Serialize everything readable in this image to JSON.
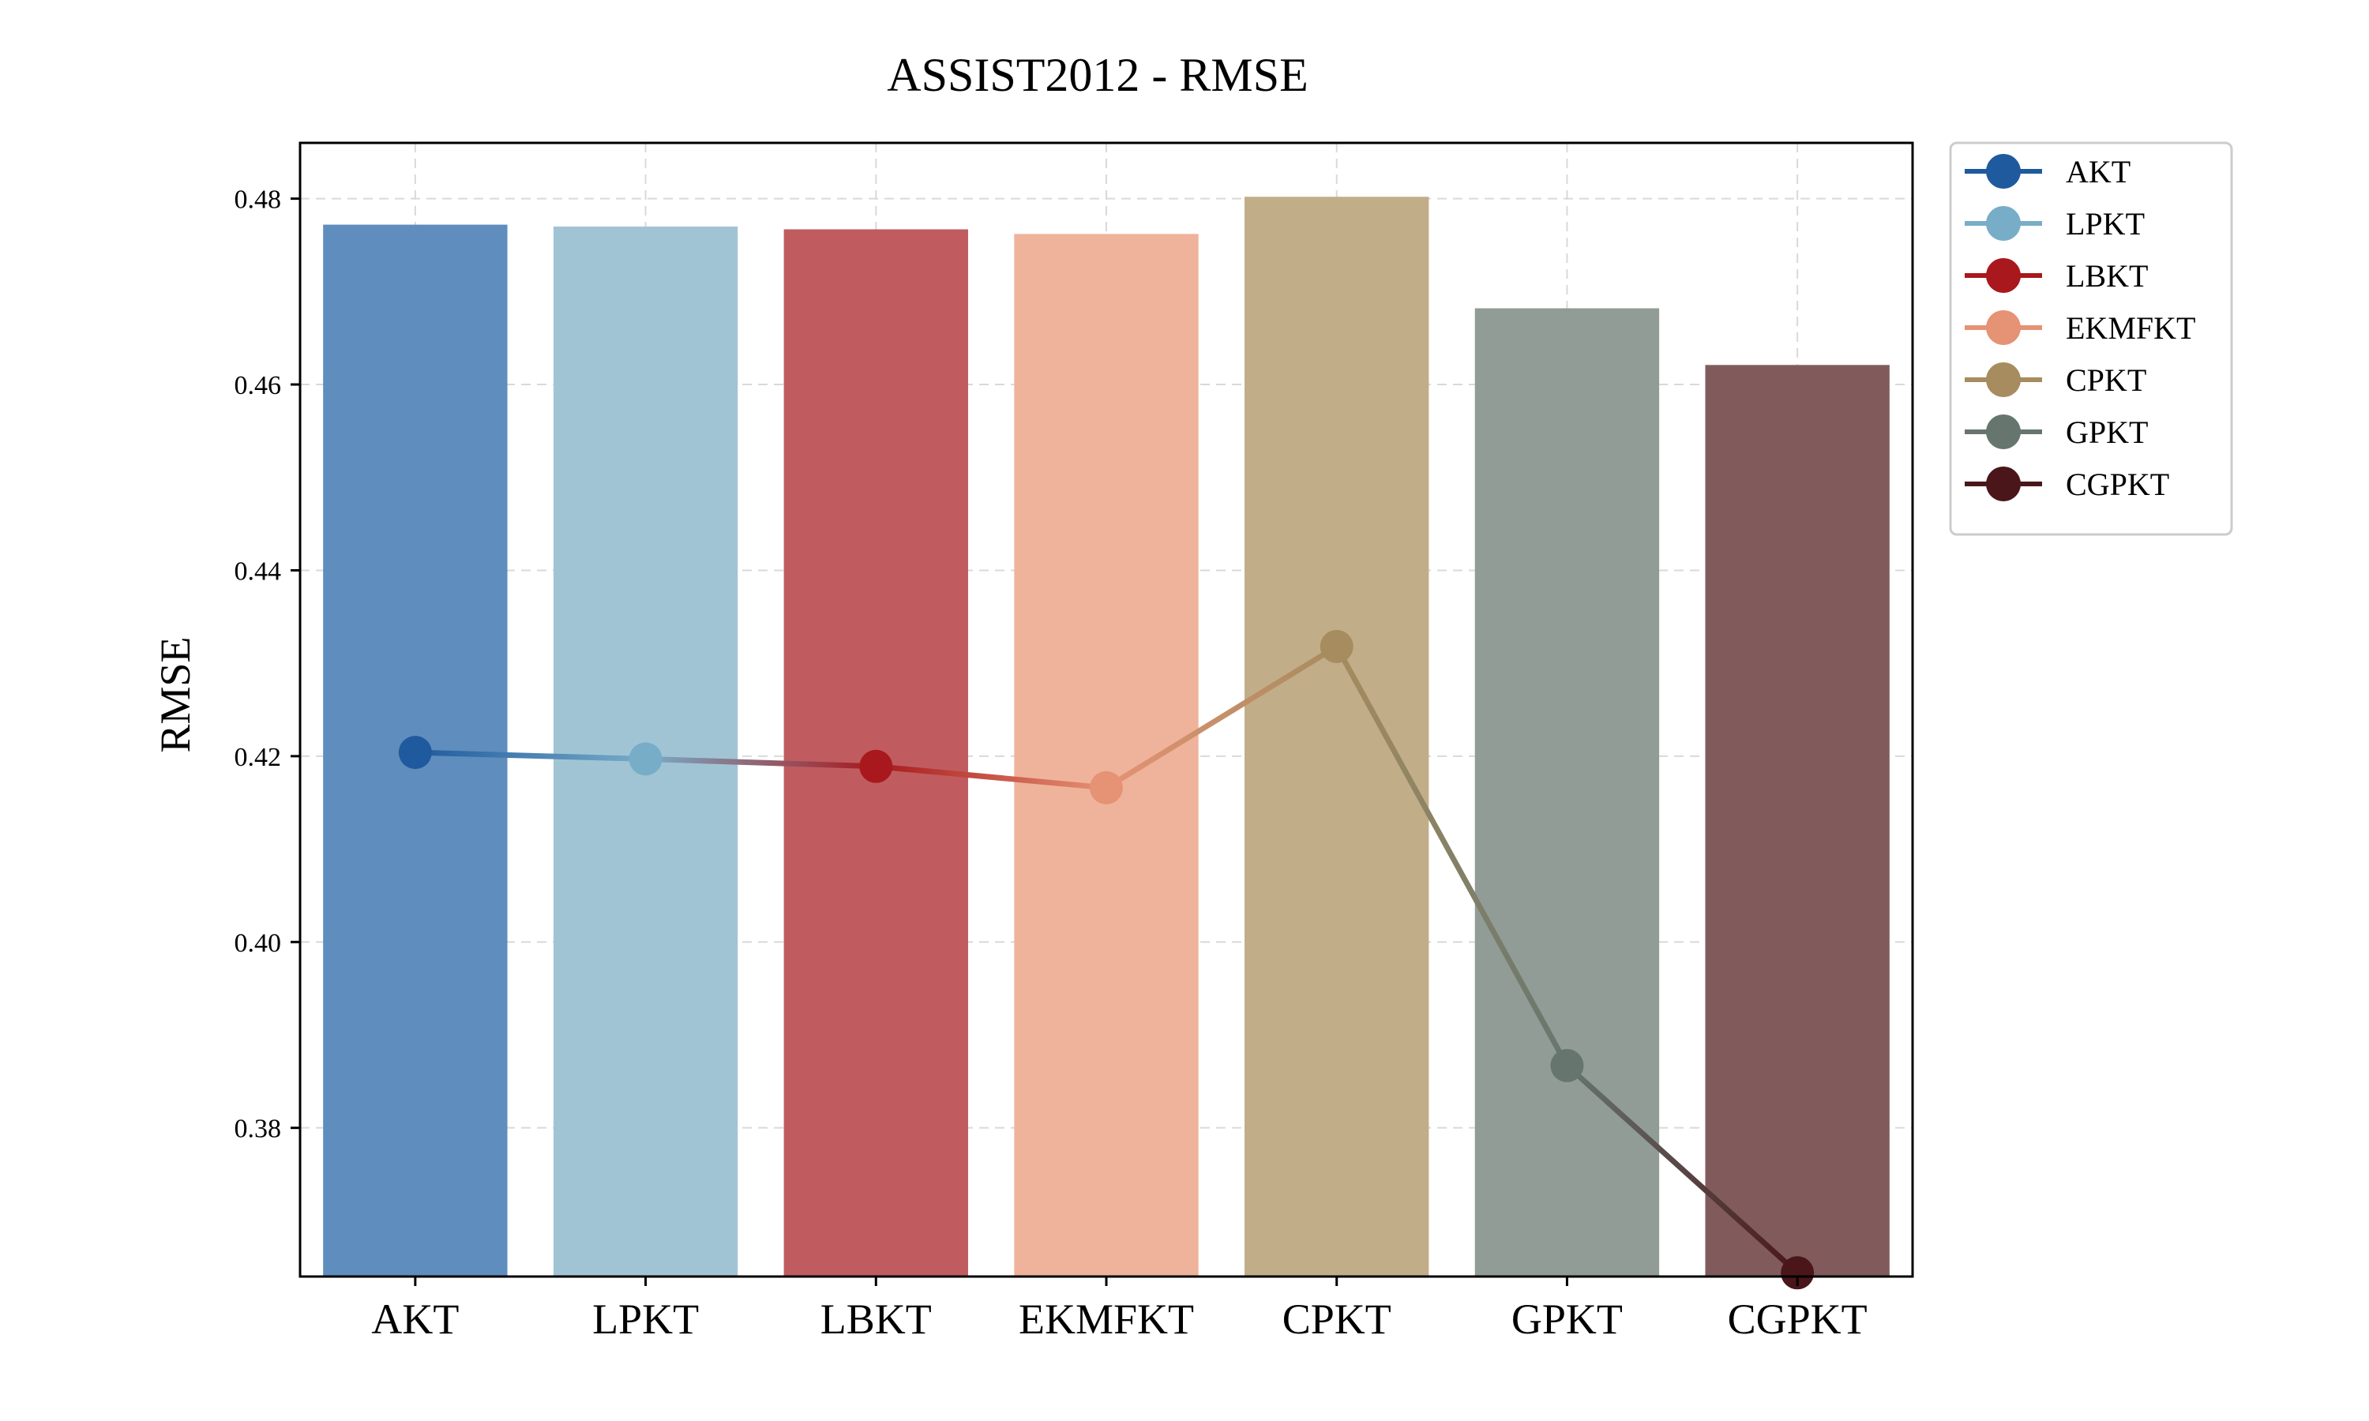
{
  "chart_data": {
    "type": "bar",
    "title": "ASSIST2012 - RMSE",
    "xlabel": "",
    "ylabel": "RMSE",
    "categories": [
      "AKT",
      "LPKT",
      "LBKT",
      "EKMFKT",
      "CPKT",
      "GPKT",
      "CGPKT"
    ],
    "ylim": [
      0.364,
      0.486
    ],
    "yticks": [
      0.38,
      0.4,
      0.42,
      0.44,
      0.46,
      0.48
    ],
    "ytick_labels": [
      "0.38",
      "0.40",
      "0.42",
      "0.44",
      "0.46",
      "0.48"
    ],
    "grid": true,
    "legend_placement": "outside top-right",
    "series": [
      {
        "kind": "bar",
        "values": [
          0.4772,
          0.477,
          0.4767,
          0.4762,
          0.4802,
          0.4682,
          0.4621
        ]
      },
      {
        "kind": "line",
        "values": [
          0.4204,
          0.4197,
          0.4189,
          0.4166,
          0.4318,
          0.3867,
          0.3644
        ]
      }
    ],
    "legend": [
      "AKT",
      "LPKT",
      "LBKT",
      "EKMFKT",
      "CPKT",
      "GPKT",
      "CGPKT"
    ],
    "colors": {
      "line": [
        "#1f5a9e",
        "#78adc8",
        "#a8181c",
        "#e69274",
        "#a68c5e",
        "#66766f",
        "#4a161a"
      ],
      "bar": [
        "#5f8dbd",
        "#a1c4d5",
        "#c05c5f",
        "#efb39b",
        "#c2ad89",
        "#919c96",
        "#815b5b"
      ]
    }
  }
}
